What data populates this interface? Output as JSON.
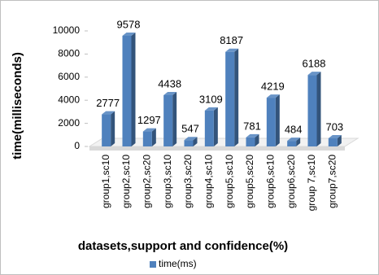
{
  "chart_data": {
    "type": "bar3d",
    "x_label": "datasets,support and confidence(%)",
    "y_label": "time(milliseconds)",
    "categories": [
      "group1,sc10",
      "group2,sc10",
      "group2,sc20",
      "group3,sc10",
      "group3,sc20",
      "group4,sc10",
      "group5,sc10",
      "group5,sc20",
      "group6,sc10",
      "group6,sc20",
      "group 7,sc10",
      "group7,sc20"
    ],
    "series": [
      {
        "name": "time(ms)",
        "color": "#4f81bd",
        "values": [
          2777,
          9578,
          1297,
          4438,
          547,
          3109,
          8187,
          781,
          4219,
          484,
          6188,
          703
        ]
      }
    ],
    "ylim": [
      0,
      10000
    ],
    "yticks": [
      0,
      2000,
      4000,
      6000,
      8000,
      10000
    ],
    "legend": "bottom",
    "data_labels": true
  }
}
